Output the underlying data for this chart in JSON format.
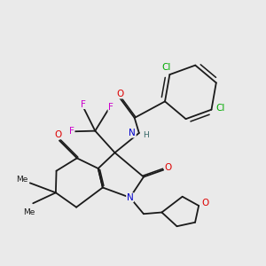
{
  "bg_color": "#eaeaea",
  "bond_color": "#1a1a1a",
  "bond_lw": 1.3,
  "atom_colors": {
    "O": "#dd0000",
    "N": "#0000cc",
    "F": "#cc00cc",
    "Cl": "#00aa00",
    "H": "#336666",
    "C": "#1a1a1a"
  }
}
